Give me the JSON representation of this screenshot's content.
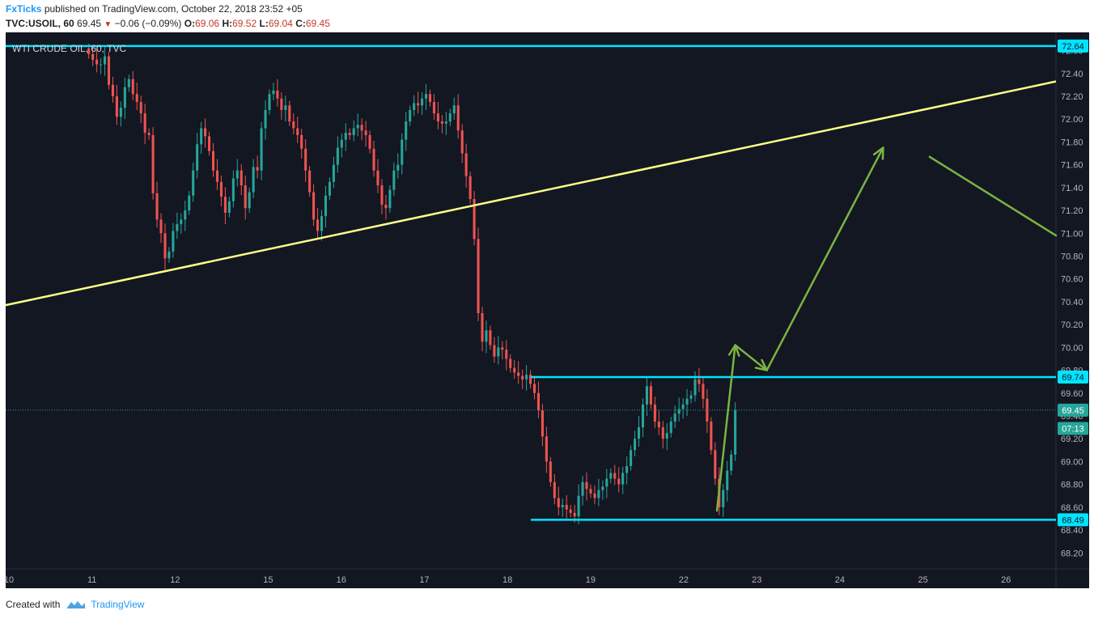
{
  "header": {
    "brand": "FxTicks",
    "published_text": "published on TradingView.com, October 22, 2018 23:52 +05",
    "symbol": "TVC:USOIL, 60",
    "last": "69.45",
    "change": "−0.06 (−0.09%)",
    "open_label": "O:",
    "open": "69.06",
    "high_label": "H:",
    "high": "69.52",
    "low_label": "L:",
    "low": "69.04",
    "close_label": "C:",
    "close": "69.45"
  },
  "footer": {
    "created_with": "Created with",
    "brand": "TradingView"
  },
  "colors": {
    "background": "#131722",
    "up": "#26a69a",
    "down": "#ef5350",
    "level_line": "#00e5ff",
    "trend_line": "#ffff88",
    "arrow": "#7cb342"
  },
  "chart_data": {
    "type": "candlestick",
    "title": "WTI CRUDE OIL, 60, TVC",
    "ylim": [
      68.06,
      72.76
    ],
    "xlim": [
      0,
      31.6
    ],
    "y_ticks": [
      "68.20",
      "68.40",
      "68.60",
      "68.80",
      "69.00",
      "69.20",
      "69.40",
      "69.60",
      "69.80",
      "70.00",
      "70.20",
      "70.40",
      "70.60",
      "70.80",
      "71.00",
      "71.20",
      "71.40",
      "71.60",
      "71.80",
      "72.00",
      "72.20",
      "72.40",
      "72.60"
    ],
    "x_ticks": [
      {
        "label": "10",
        "x": 0
      },
      {
        "label": "11",
        "x": 2.5
      },
      {
        "label": "12",
        "x": 5.0
      },
      {
        "label": "15",
        "x": 7.8
      },
      {
        "label": "16",
        "x": 10.0
      },
      {
        "label": "17",
        "x": 12.5
      },
      {
        "label": "18",
        "x": 15.0
      },
      {
        "label": "19",
        "x": 17.5
      },
      {
        "label": "22",
        "x": 20.3
      },
      {
        "label": "23",
        "x": 22.5
      },
      {
        "label": "24",
        "x": 25.0
      },
      {
        "label": "25",
        "x": 27.5
      },
      {
        "label": "26",
        "x": 30.0
      }
    ],
    "price_badges": [
      {
        "label": "72.64",
        "value": 72.64,
        "style": "level"
      },
      {
        "label": "69.74",
        "value": 69.74,
        "style": "level"
      },
      {
        "label": "69.45",
        "value": 69.45,
        "style": "last"
      },
      {
        "label": "07:13",
        "value": 69.29,
        "style": "timer"
      },
      {
        "label": "68.49",
        "value": 68.49,
        "style": "level"
      }
    ],
    "last_price": 69.45,
    "horizontal_levels": [
      {
        "value": 72.64,
        "x_from": 0,
        "x_to": 31.6
      },
      {
        "value": 69.74,
        "x_from": 15.8,
        "x_to": 31.6
      },
      {
        "value": 68.49,
        "x_from": 15.8,
        "x_to": 31.6
      }
    ],
    "trend_line": {
      "x1": 0,
      "y1": 70.37,
      "x2": 31.6,
      "y2": 72.33
    },
    "arrows": [
      {
        "points": [
          [
            21.4,
            68.57
          ],
          [
            21.95,
            70.02
          ]
        ],
        "head": true
      },
      {
        "points": [
          [
            21.95,
            70.02
          ],
          [
            22.9,
            69.8
          ]
        ],
        "head": true
      },
      {
        "points": [
          [
            22.9,
            69.8
          ],
          [
            26.4,
            71.75
          ]
        ],
        "head": true
      },
      {
        "points": [
          [
            27.8,
            71.67
          ],
          [
            31.6,
            70.98
          ]
        ],
        "head": false
      }
    ],
    "closes": [
      72.57,
      72.52,
      72.48,
      72.48,
      72.55,
      72.3,
      72.2,
      72.02,
      72.1,
      72.28,
      72.35,
      72.22,
      72.15,
      72.05,
      71.88,
      71.86,
      71.35,
      71.12,
      71.0,
      70.78,
      70.84,
      71.02,
      71.08,
      71.12,
      71.2,
      71.33,
      71.55,
      71.78,
      71.92,
      71.85,
      71.72,
      71.55,
      71.45,
      71.32,
      71.18,
      71.28,
      71.48,
      71.55,
      71.42,
      71.22,
      71.36,
      71.58,
      71.55,
      71.92,
      72.08,
      72.22,
      72.25,
      72.18,
      72.08,
      72.12,
      71.98,
      71.92,
      71.86,
      71.74,
      71.55,
      71.36,
      71.12,
      71.02,
      71.15,
      71.33,
      71.45,
      71.6,
      71.75,
      71.82,
      71.88,
      71.86,
      71.92,
      71.95,
      71.9,
      71.86,
      71.74,
      71.55,
      71.42,
      71.25,
      71.22,
      71.38,
      71.55,
      71.6,
      71.82,
      71.98,
      72.08,
      72.14,
      72.12,
      72.18,
      72.22,
      72.15,
      72.05,
      71.98,
      71.96,
      71.98,
      72.05,
      72.12,
      71.9,
      71.7,
      71.5,
      71.3,
      70.95,
      70.3,
      70.05,
      70.15,
      70.02,
      69.92,
      70.0,
      69.98,
      69.9,
      69.82,
      69.78,
      69.75,
      69.72,
      69.76,
      69.68,
      69.6,
      69.45,
      69.22,
      69.0,
      68.82,
      68.68,
      68.6,
      68.62,
      68.58,
      68.55,
      68.52,
      68.7,
      68.82,
      68.76,
      68.72,
      68.68,
      68.75,
      68.78,
      68.85,
      68.9,
      68.85,
      68.8,
      68.9,
      68.96,
      69.1,
      69.2,
      69.3,
      69.5,
      69.66,
      69.5,
      69.35,
      69.3,
      69.2,
      69.25,
      69.35,
      69.42,
      69.46,
      69.5,
      69.55,
      69.58,
      69.72,
      69.68,
      69.55,
      69.35,
      69.1,
      68.85,
      68.6,
      68.75,
      68.92,
      69.06,
      69.45
    ]
  }
}
